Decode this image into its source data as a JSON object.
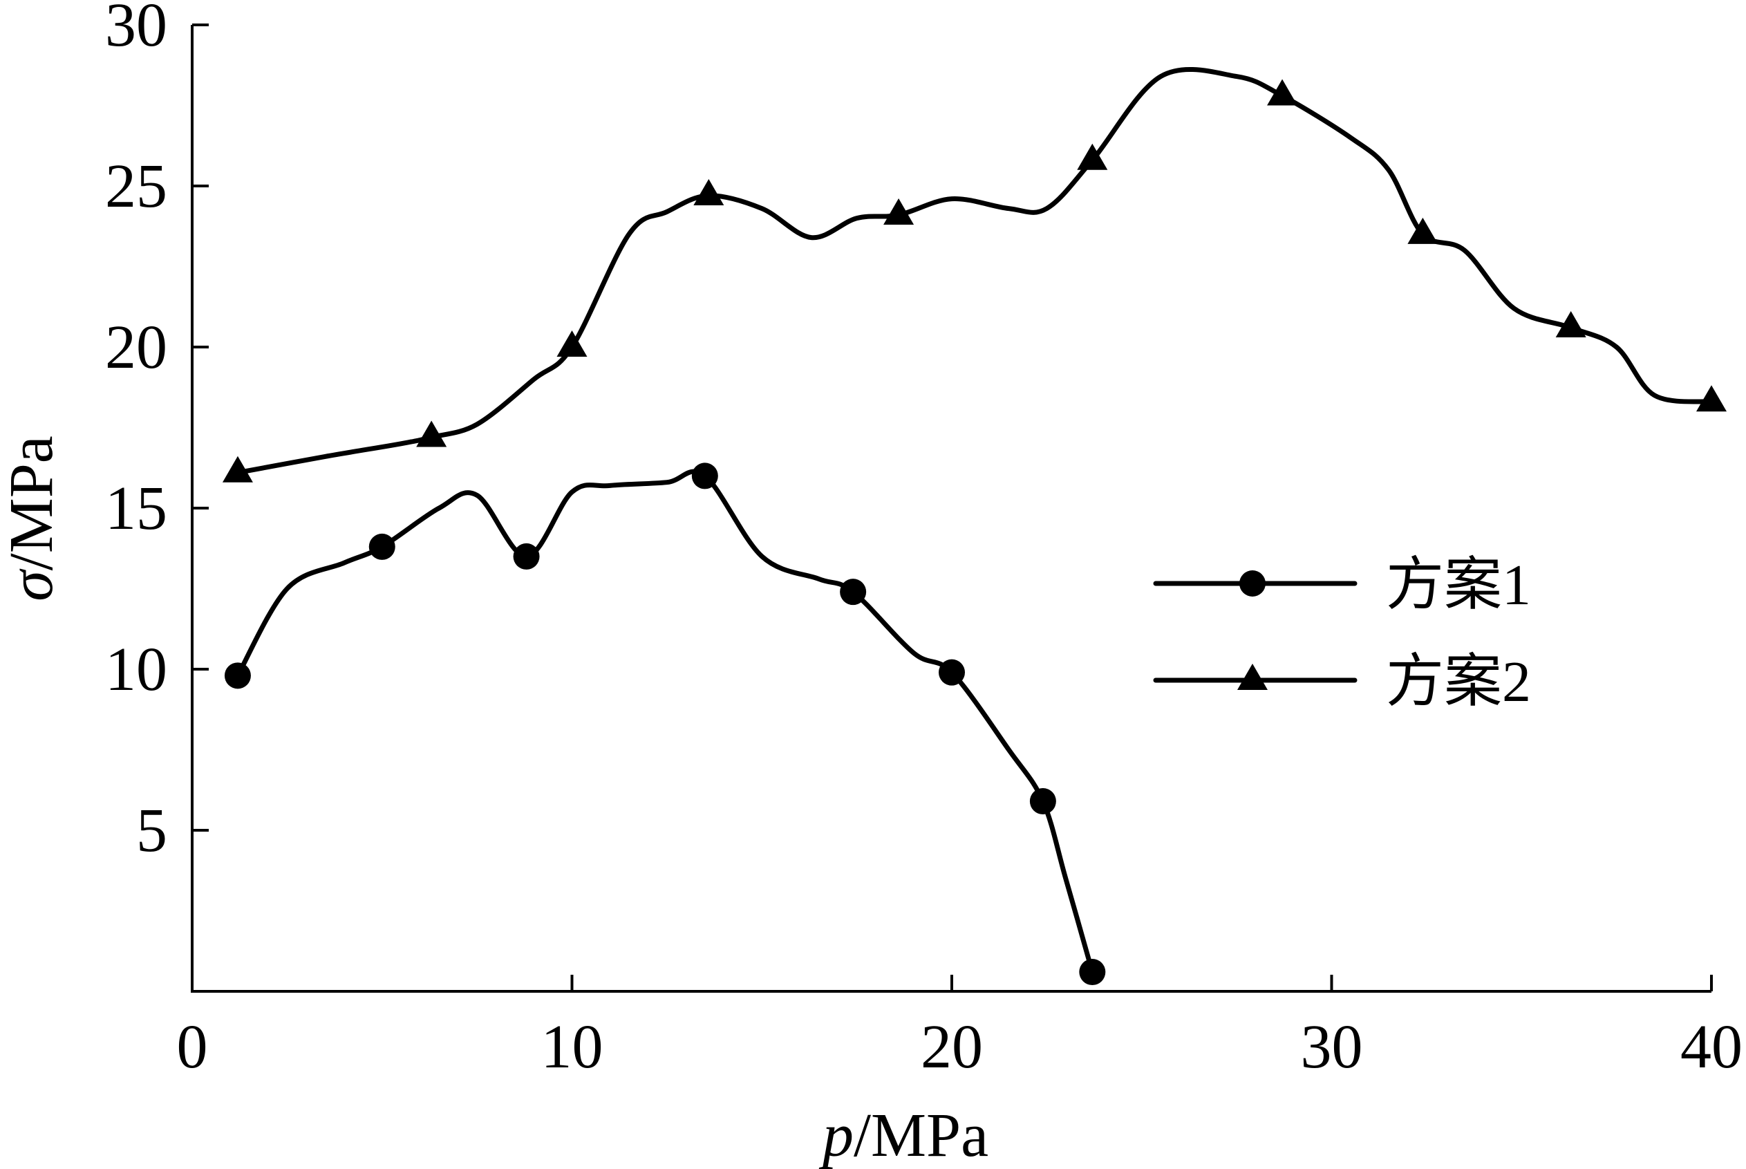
{
  "chart_data": {
    "type": "line",
    "xlabel_italic": "p",
    "xlabel_unit": "/MPa",
    "ylabel_italic": "σ",
    "ylabel_unit": "/MPa",
    "xlim": [
      0,
      40
    ],
    "ylim": [
      0,
      30
    ],
    "xticks": [
      0,
      10,
      20,
      30,
      40
    ],
    "yticks": [
      5,
      10,
      15,
      20,
      25,
      30
    ],
    "grid": false,
    "legend_position": "right",
    "line_color": "#000000",
    "series": [
      {
        "name": "方案1",
        "marker": "circle",
        "markers": [
          [
            1.2,
            9.8
          ],
          [
            5.0,
            13.8
          ],
          [
            8.8,
            13.5
          ],
          [
            13.5,
            16.0
          ],
          [
            17.4,
            12.4
          ],
          [
            20.0,
            9.9
          ],
          [
            22.4,
            5.9
          ],
          [
            23.7,
            0.6
          ]
        ],
        "curve": [
          [
            1.2,
            9.8
          ],
          [
            2.5,
            12.5
          ],
          [
            4.0,
            13.3
          ],
          [
            5.0,
            13.8
          ],
          [
            6.5,
            15.0
          ],
          [
            7.5,
            15.4
          ],
          [
            8.8,
            13.5
          ],
          [
            10.0,
            15.5
          ],
          [
            11.0,
            15.7
          ],
          [
            12.5,
            15.8
          ],
          [
            13.5,
            16.0
          ],
          [
            15.0,
            13.5
          ],
          [
            16.5,
            12.8
          ],
          [
            17.4,
            12.4
          ],
          [
            19.0,
            10.5
          ],
          [
            20.0,
            9.9
          ],
          [
            21.5,
            7.5
          ],
          [
            22.4,
            5.9
          ],
          [
            23.0,
            3.5
          ],
          [
            23.7,
            0.6
          ]
        ]
      },
      {
        "name": "方案2",
        "marker": "triangle",
        "markers": [
          [
            1.2,
            16.1
          ],
          [
            6.3,
            17.2
          ],
          [
            10.0,
            20.0
          ],
          [
            13.6,
            24.7
          ],
          [
            18.6,
            24.1
          ],
          [
            23.7,
            25.8
          ],
          [
            28.7,
            27.8
          ],
          [
            32.4,
            23.5
          ],
          [
            36.3,
            20.6
          ],
          [
            40.0,
            18.3
          ]
        ],
        "curve": [
          [
            1.2,
            16.1
          ],
          [
            3.5,
            16.6
          ],
          [
            5.5,
            17.0
          ],
          [
            6.3,
            17.2
          ],
          [
            7.5,
            17.6
          ],
          [
            9.0,
            19.0
          ],
          [
            10.0,
            20.0
          ],
          [
            11.5,
            23.5
          ],
          [
            12.5,
            24.2
          ],
          [
            13.6,
            24.7
          ],
          [
            15.0,
            24.3
          ],
          [
            16.3,
            23.4
          ],
          [
            17.5,
            24.0
          ],
          [
            18.6,
            24.1
          ],
          [
            20.0,
            24.6
          ],
          [
            21.5,
            24.3
          ],
          [
            22.5,
            24.3
          ],
          [
            23.7,
            25.8
          ],
          [
            25.5,
            28.4
          ],
          [
            27.5,
            28.4
          ],
          [
            28.7,
            27.8
          ],
          [
            30.5,
            26.5
          ],
          [
            31.5,
            25.5
          ],
          [
            32.4,
            23.5
          ],
          [
            33.5,
            23.0
          ],
          [
            34.8,
            21.2
          ],
          [
            36.3,
            20.6
          ],
          [
            37.5,
            20.0
          ],
          [
            38.5,
            18.5
          ],
          [
            40.0,
            18.3
          ]
        ]
      }
    ]
  }
}
